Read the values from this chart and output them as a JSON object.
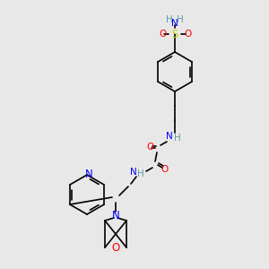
{
  "bg_color": "#e8e8e8",
  "atom_colors": {
    "C": "#000000",
    "N": "#0000ff",
    "O": "#ff0000",
    "S": "#cccc00",
    "H": "#5f9ea0"
  },
  "bond_color": "#000000",
  "font_size": 7.5,
  "bond_width": 1.2
}
